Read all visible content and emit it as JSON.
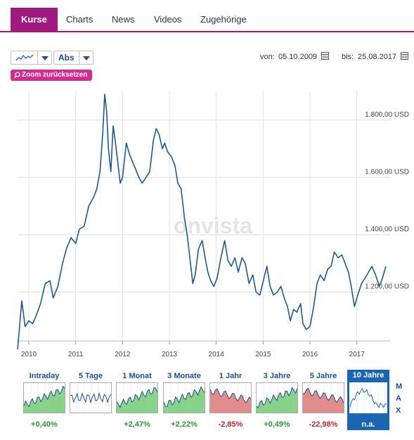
{
  "tabs": [
    {
      "label": "Kurse",
      "active": true
    },
    {
      "label": "Charts"
    },
    {
      "label": "News"
    },
    {
      "label": "Videos"
    },
    {
      "label": "Zugehörige"
    }
  ],
  "toolbar": {
    "chart_type_icon": "line-chart-icon",
    "scale_label": "Abs",
    "zoom_reset_label": "Zoom zurücksetzen"
  },
  "date_range": {
    "from_label": "von:",
    "from_value": "05.10.2009",
    "to_label": "bis:",
    "to_value": "25.08.2017"
  },
  "watermark": "onvista",
  "colors": {
    "accent": "#a0197e",
    "zoom": "#d62b8d",
    "line": "#1c5a94",
    "pos": "#2a9a2a",
    "neg": "#c0272d",
    "active_panel": "#1c65b0"
  },
  "chart_data": {
    "type": "line",
    "x_ticks": [
      "2010",
      "2011",
      "2012",
      "2013",
      "2014",
      "2015",
      "2016",
      "2017"
    ],
    "y_ticks": [
      "1.200,00 USD",
      "1.400,00 USD",
      "1.600,00 USD",
      "1.800,00 USD"
    ],
    "ylim": [
      1030,
      1900
    ],
    "xlim": [
      2009.76,
      2017.65
    ],
    "grid": true,
    "series": [
      {
        "values": [
          [
            2009.76,
            1000
          ],
          [
            2009.85,
            1170
          ],
          [
            2009.92,
            1080
          ],
          [
            2010.0,
            1100
          ],
          [
            2010.08,
            1090
          ],
          [
            2010.15,
            1115
          ],
          [
            2010.25,
            1160
          ],
          [
            2010.35,
            1230
          ],
          [
            2010.45,
            1240
          ],
          [
            2010.52,
            1180
          ],
          [
            2010.62,
            1220
          ],
          [
            2010.72,
            1300
          ],
          [
            2010.8,
            1350
          ],
          [
            2010.9,
            1390
          ],
          [
            2011.0,
            1370
          ],
          [
            2011.08,
            1420
          ],
          [
            2011.18,
            1430
          ],
          [
            2011.28,
            1500
          ],
          [
            2011.38,
            1530
          ],
          [
            2011.45,
            1560
          ],
          [
            2011.52,
            1620
          ],
          [
            2011.58,
            1760
          ],
          [
            2011.62,
            1890
          ],
          [
            2011.66,
            1830
          ],
          [
            2011.7,
            1700
          ],
          [
            2011.75,
            1620
          ],
          [
            2011.8,
            1780
          ],
          [
            2011.85,
            1720
          ],
          [
            2011.9,
            1650
          ],
          [
            2011.95,
            1580
          ],
          [
            2012.0,
            1600
          ],
          [
            2012.08,
            1720
          ],
          [
            2012.15,
            1680
          ],
          [
            2012.25,
            1640
          ],
          [
            2012.35,
            1600
          ],
          [
            2012.42,
            1580
          ],
          [
            2012.5,
            1600
          ],
          [
            2012.58,
            1620
          ],
          [
            2012.66,
            1730
          ],
          [
            2012.72,
            1770
          ],
          [
            2012.78,
            1750
          ],
          [
            2012.85,
            1700
          ],
          [
            2012.9,
            1720
          ],
          [
            2012.96,
            1690
          ],
          [
            2013.05,
            1670
          ],
          [
            2013.12,
            1640
          ],
          [
            2013.18,
            1580
          ],
          [
            2013.25,
            1560
          ],
          [
            2013.32,
            1460
          ],
          [
            2013.38,
            1400
          ],
          [
            2013.45,
            1300
          ],
          [
            2013.5,
            1230
          ],
          [
            2013.55,
            1260
          ],
          [
            2013.62,
            1350
          ],
          [
            2013.7,
            1380
          ],
          [
            2013.75,
            1330
          ],
          [
            2013.82,
            1270
          ],
          [
            2013.88,
            1240
          ],
          [
            2013.95,
            1220
          ],
          [
            2014.02,
            1250
          ],
          [
            2014.1,
            1320
          ],
          [
            2014.18,
            1380
          ],
          [
            2014.25,
            1310
          ],
          [
            2014.32,
            1290
          ],
          [
            2014.4,
            1320
          ],
          [
            2014.47,
            1270
          ],
          [
            2014.55,
            1320
          ],
          [
            2014.62,
            1300
          ],
          [
            2014.7,
            1230
          ],
          [
            2014.78,
            1260
          ],
          [
            2014.85,
            1200
          ],
          [
            2014.93,
            1190
          ],
          [
            2015.02,
            1250
          ],
          [
            2015.08,
            1290
          ],
          [
            2015.15,
            1220
          ],
          [
            2015.22,
            1190
          ],
          [
            2015.3,
            1200
          ],
          [
            2015.38,
            1220
          ],
          [
            2015.45,
            1180
          ],
          [
            2015.52,
            1150
          ],
          [
            2015.58,
            1100
          ],
          [
            2015.65,
            1140
          ],
          [
            2015.72,
            1130
          ],
          [
            2015.8,
            1160
          ],
          [
            2015.85,
            1090
          ],
          [
            2015.92,
            1070
          ],
          [
            2016.0,
            1080
          ],
          [
            2016.08,
            1150
          ],
          [
            2016.15,
            1230
          ],
          [
            2016.22,
            1260
          ],
          [
            2016.3,
            1240
          ],
          [
            2016.38,
            1280
          ],
          [
            2016.45,
            1290
          ],
          [
            2016.52,
            1340
          ],
          [
            2016.6,
            1320
          ],
          [
            2016.68,
            1330
          ],
          [
            2016.75,
            1300
          ],
          [
            2016.82,
            1270
          ],
          [
            2016.88,
            1220
          ],
          [
            2016.95,
            1150
          ],
          [
            2017.02,
            1190
          ],
          [
            2017.1,
            1230
          ],
          [
            2017.18,
            1250
          ],
          [
            2017.25,
            1270
          ],
          [
            2017.32,
            1290
          ],
          [
            2017.4,
            1260
          ],
          [
            2017.48,
            1220
          ],
          [
            2017.55,
            1250
          ],
          [
            2017.62,
            1290
          ]
        ]
      }
    ]
  },
  "periods": [
    {
      "label": "Intraday",
      "value": "+0,40%",
      "trend": "pos"
    },
    {
      "label": "5 Tage",
      "value": "",
      "trend": "flat"
    },
    {
      "label": "1 Monat",
      "value": "+2,47%",
      "trend": "pos"
    },
    {
      "label": "3 Monate",
      "value": "+2,22%",
      "trend": "pos"
    },
    {
      "label": "1 Jahr",
      "value": "-2,85%",
      "trend": "neg"
    },
    {
      "label": "3 Jahre",
      "value": "+0,49%",
      "trend": "pos"
    },
    {
      "label": "5 Jahre",
      "value": "-22,98%",
      "trend": "neg"
    },
    {
      "label": "10 Jahre",
      "value": "n.a.",
      "trend": "active"
    }
  ],
  "max_letters": [
    "M",
    "A",
    "X"
  ]
}
